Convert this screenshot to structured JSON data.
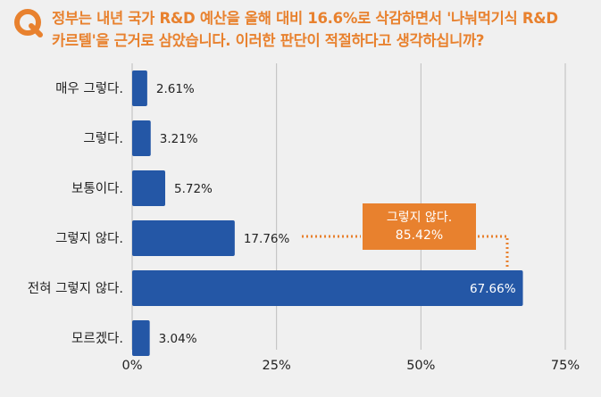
{
  "question": {
    "line1": "정부는 내년 국가 R&D 예산을 올해 대비 16.6%로 삭감하면서  '나눠먹기식 R&D",
    "line2": "카르텔'을 근거로 삼았습니다. 이러한 판단이 적절하다고 생각하십니까?"
  },
  "colors": {
    "bar": "#2457a6",
    "accent": "#e8812e",
    "grid": "#bdbdbd",
    "background": "#f0f0f0"
  },
  "callout": {
    "label": "그렇지 않다.",
    "value": "85.42%"
  },
  "chart_data": {
    "type": "bar",
    "orientation": "horizontal",
    "categories": [
      "매우 그렇다.",
      "그렇다.",
      "보통이다.",
      "그렇지 않다.",
      "전혀 그렇지 않다.",
      "모르겠다."
    ],
    "values": [
      2.61,
      3.21,
      5.72,
      17.76,
      67.66,
      3.04
    ],
    "value_labels": [
      "2.61%",
      "3.21%",
      "5.72%",
      "17.76%",
      "67.66%",
      "3.04%"
    ],
    "xlim": [
      0,
      75
    ],
    "xticks": [
      0,
      25,
      50,
      75
    ],
    "xtick_labels": [
      "0%",
      "25%",
      "50%",
      "75%"
    ],
    "grid": true
  }
}
